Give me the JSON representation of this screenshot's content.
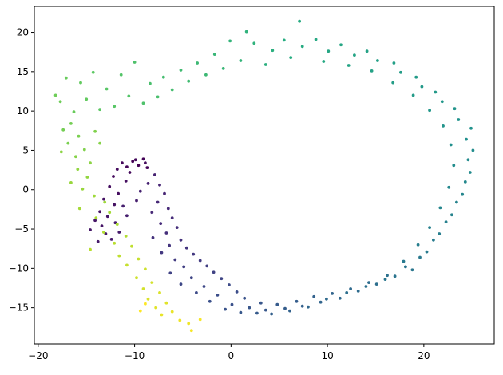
{
  "chart_data": {
    "type": "scatter",
    "title": "",
    "xlabel": "",
    "ylabel": "",
    "xlim": [
      -20.4,
      27.3
    ],
    "ylim": [
      -19.6,
      23.3
    ],
    "xticks": [
      -20,
      -10,
      0,
      10,
      20
    ],
    "yticks": [
      -15,
      -10,
      -5,
      0,
      5,
      10,
      15,
      20
    ],
    "grid": false,
    "colormap": "viridis",
    "marker_color_range": {
      "start": "#440154",
      "end": "#fde725"
    },
    "note_on_points": "Points trace a spiral/ring; t in [0,1] maps to viridis color along the curve.",
    "points": [
      {
        "x": -10.2,
        "y": 3.6,
        "t": 0.0
      },
      {
        "x": -9.6,
        "y": 3.1,
        "t": 0.0
      },
      {
        "x": -10.8,
        "y": 2.9,
        "t": 0.01
      },
      {
        "x": -9.1,
        "y": 3.9,
        "t": 0.01
      },
      {
        "x": -8.7,
        "y": 2.8,
        "t": 0.01
      },
      {
        "x": -11.3,
        "y": 3.4,
        "t": 0.02
      },
      {
        "x": -10.5,
        "y": 2.2,
        "t": 0.02
      },
      {
        "x": -9.9,
        "y": 3.8,
        "t": 0.02
      },
      {
        "x": -8.9,
        "y": 3.4,
        "t": 0.03
      },
      {
        "x": -11.8,
        "y": 2.6,
        "t": 0.03
      },
      {
        "x": -12.2,
        "y": 1.7,
        "t": 0.03
      },
      {
        "x": -10.9,
        "y": 1.1,
        "t": 0.04
      },
      {
        "x": -12.6,
        "y": 0.4,
        "t": 0.04
      },
      {
        "x": -11.7,
        "y": -0.5,
        "t": 0.04
      },
      {
        "x": -13.2,
        "y": -1.2,
        "t": 0.05
      },
      {
        "x": -12.1,
        "y": -1.9,
        "t": 0.05
      },
      {
        "x": -13.6,
        "y": -2.8,
        "t": 0.05
      },
      {
        "x": -12.8,
        "y": -3.4,
        "t": 0.06
      },
      {
        "x": -14.1,
        "y": -3.9,
        "t": 0.06
      },
      {
        "x": -13.4,
        "y": -4.6,
        "t": 0.06
      },
      {
        "x": -14.6,
        "y": -5.1,
        "t": 0.07
      },
      {
        "x": -13.0,
        "y": -5.6,
        "t": 0.07
      },
      {
        "x": -12.4,
        "y": -6.3,
        "t": 0.07
      },
      {
        "x": -13.8,
        "y": -6.6,
        "t": 0.08
      },
      {
        "x": -11.6,
        "y": -5.4,
        "t": 0.08
      },
      {
        "x": -12.0,
        "y": -4.2,
        "t": 0.08
      },
      {
        "x": -10.8,
        "y": -3.3,
        "t": 0.09
      },
      {
        "x": -11.2,
        "y": -2.1,
        "t": 0.09
      },
      {
        "x": -9.8,
        "y": -1.4,
        "t": 0.09
      },
      {
        "x": -9.4,
        "y": -0.2,
        "t": 0.1
      },
      {
        "x": -8.6,
        "y": 0.8,
        "t": 0.1
      },
      {
        "x": -7.9,
        "y": 1.9,
        "t": 0.1
      },
      {
        "x": -7.4,
        "y": 0.6,
        "t": 0.11
      },
      {
        "x": -6.9,
        "y": -0.5,
        "t": 0.11
      },
      {
        "x": -7.6,
        "y": -1.6,
        "t": 0.12
      },
      {
        "x": -6.5,
        "y": -2.4,
        "t": 0.12
      },
      {
        "x": -8.2,
        "y": -2.9,
        "t": 0.12
      },
      {
        "x": -6.1,
        "y": -3.6,
        "t": 0.13
      },
      {
        "x": -7.3,
        "y": -4.3,
        "t": 0.13
      },
      {
        "x": -5.6,
        "y": -4.8,
        "t": 0.14
      },
      {
        "x": -6.7,
        "y": -5.5,
        "t": 0.14
      },
      {
        "x": -8.1,
        "y": -6.1,
        "t": 0.15
      },
      {
        "x": -5.2,
        "y": -6.4,
        "t": 0.15
      },
      {
        "x": -6.4,
        "y": -7.1,
        "t": 0.16
      },
      {
        "x": -4.6,
        "y": -7.4,
        "t": 0.16
      },
      {
        "x": -7.2,
        "y": -8.0,
        "t": 0.17
      },
      {
        "x": -3.9,
        "y": -8.2,
        "t": 0.17
      },
      {
        "x": -5.8,
        "y": -8.9,
        "t": 0.18
      },
      {
        "x": -3.2,
        "y": -9.0,
        "t": 0.18
      },
      {
        "x": -4.9,
        "y": -9.8,
        "t": 0.19
      },
      {
        "x": -2.5,
        "y": -9.7,
        "t": 0.19
      },
      {
        "x": -6.3,
        "y": -10.6,
        "t": 0.2
      },
      {
        "x": -1.8,
        "y": -10.5,
        "t": 0.2
      },
      {
        "x": -4.1,
        "y": -11.2,
        "t": 0.21
      },
      {
        "x": -1.0,
        "y": -11.3,
        "t": 0.21
      },
      {
        "x": -5.2,
        "y": -12.0,
        "t": 0.22
      },
      {
        "x": -2.8,
        "y": -12.3,
        "t": 0.22
      },
      {
        "x": -0.2,
        "y": -12.1,
        "t": 0.23
      },
      {
        "x": -3.6,
        "y": -13.1,
        "t": 0.23
      },
      {
        "x": -1.4,
        "y": -13.4,
        "t": 0.24
      },
      {
        "x": 0.6,
        "y": -13.0,
        "t": 0.24
      },
      {
        "x": -2.2,
        "y": -14.2,
        "t": 0.25
      },
      {
        "x": 0.1,
        "y": -14.6,
        "t": 0.25
      },
      {
        "x": 1.4,
        "y": -13.8,
        "t": 0.26
      },
      {
        "x": -0.6,
        "y": -15.2,
        "t": 0.26
      },
      {
        "x": 1.9,
        "y": -15.0,
        "t": 0.27
      },
      {
        "x": 3.1,
        "y": -14.4,
        "t": 0.27
      },
      {
        "x": 1.0,
        "y": -15.6,
        "t": 0.28
      },
      {
        "x": 3.6,
        "y": -15.3,
        "t": 0.28
      },
      {
        "x": 4.8,
        "y": -14.6,
        "t": 0.29
      },
      {
        "x": 2.7,
        "y": -15.7,
        "t": 0.29
      },
      {
        "x": 5.6,
        "y": -15.1,
        "t": 0.3
      },
      {
        "x": 6.8,
        "y": -14.2,
        "t": 0.3
      },
      {
        "x": 4.2,
        "y": -15.8,
        "t": 0.31
      },
      {
        "x": 7.4,
        "y": -14.8,
        "t": 0.31
      },
      {
        "x": 8.6,
        "y": -13.6,
        "t": 0.32
      },
      {
        "x": 6.1,
        "y": -15.4,
        "t": 0.32
      },
      {
        "x": 9.3,
        "y": -14.3,
        "t": 0.33
      },
      {
        "x": 10.5,
        "y": -13.2,
        "t": 0.33
      },
      {
        "x": 8.0,
        "y": -14.9,
        "t": 0.34
      },
      {
        "x": 11.3,
        "y": -13.8,
        "t": 0.34
      },
      {
        "x": 12.4,
        "y": -12.6,
        "t": 0.35
      },
      {
        "x": 9.9,
        "y": -13.9,
        "t": 0.35
      },
      {
        "x": 13.2,
        "y": -12.9,
        "t": 0.36
      },
      {
        "x": 14.3,
        "y": -11.8,
        "t": 0.36
      },
      {
        "x": 12.0,
        "y": -13.1,
        "t": 0.37
      },
      {
        "x": 15.1,
        "y": -12.0,
        "t": 0.37
      },
      {
        "x": 16.2,
        "y": -10.9,
        "t": 0.38
      },
      {
        "x": 14.0,
        "y": -12.3,
        "t": 0.38
      },
      {
        "x": 17.0,
        "y": -11.0,
        "t": 0.39
      },
      {
        "x": 18.1,
        "y": -9.8,
        "t": 0.39
      },
      {
        "x": 16.0,
        "y": -11.4,
        "t": 0.4
      },
      {
        "x": 18.8,
        "y": -10.2,
        "t": 0.4
      },
      {
        "x": 19.6,
        "y": -8.6,
        "t": 0.41
      },
      {
        "x": 17.9,
        "y": -9.1,
        "t": 0.41
      },
      {
        "x": 20.3,
        "y": -7.9,
        "t": 0.42
      },
      {
        "x": 21.0,
        "y": -6.4,
        "t": 0.42
      },
      {
        "x": 19.4,
        "y": -7.0,
        "t": 0.43
      },
      {
        "x": 21.6,
        "y": -5.6,
        "t": 0.43
      },
      {
        "x": 22.3,
        "y": -4.1,
        "t": 0.44
      },
      {
        "x": 20.6,
        "y": -4.8,
        "t": 0.44
      },
      {
        "x": 22.9,
        "y": -3.2,
        "t": 0.45
      },
      {
        "x": 23.4,
        "y": -1.6,
        "t": 0.45
      },
      {
        "x": 21.7,
        "y": -2.3,
        "t": 0.46
      },
      {
        "x": 24.0,
        "y": -0.6,
        "t": 0.46
      },
      {
        "x": 24.3,
        "y": 1.0,
        "t": 0.47
      },
      {
        "x": 22.6,
        "y": 0.3,
        "t": 0.47
      },
      {
        "x": 24.8,
        "y": 2.2,
        "t": 0.48
      },
      {
        "x": 24.6,
        "y": 3.8,
        "t": 0.48
      },
      {
        "x": 23.1,
        "y": 3.1,
        "t": 0.49
      },
      {
        "x": 25.1,
        "y": 5.0,
        "t": 0.49
      },
      {
        "x": 24.4,
        "y": 6.4,
        "t": 0.5
      },
      {
        "x": 22.8,
        "y": 5.7,
        "t": 0.5
      },
      {
        "x": 24.9,
        "y": 7.8,
        "t": 0.51
      },
      {
        "x": 23.6,
        "y": 8.9,
        "t": 0.51
      },
      {
        "x": 22.0,
        "y": 8.1,
        "t": 0.52
      },
      {
        "x": 23.2,
        "y": 10.3,
        "t": 0.52
      },
      {
        "x": 21.9,
        "y": 11.2,
        "t": 0.53
      },
      {
        "x": 20.6,
        "y": 10.1,
        "t": 0.53
      },
      {
        "x": 21.2,
        "y": 12.4,
        "t": 0.54
      },
      {
        "x": 19.8,
        "y": 13.1,
        "t": 0.54
      },
      {
        "x": 18.9,
        "y": 12.0,
        "t": 0.55
      },
      {
        "x": 19.2,
        "y": 14.3,
        "t": 0.55
      },
      {
        "x": 17.6,
        "y": 14.9,
        "t": 0.56
      },
      {
        "x": 16.8,
        "y": 13.6,
        "t": 0.56
      },
      {
        "x": 16.9,
        "y": 16.1,
        "t": 0.57
      },
      {
        "x": 15.2,
        "y": 16.4,
        "t": 0.57
      },
      {
        "x": 14.6,
        "y": 15.1,
        "t": 0.58
      },
      {
        "x": 14.1,
        "y": 17.6,
        "t": 0.58
      },
      {
        "x": 12.8,
        "y": 17.1,
        "t": 0.59
      },
      {
        "x": 12.2,
        "y": 15.8,
        "t": 0.59
      },
      {
        "x": 11.4,
        "y": 18.4,
        "t": 0.6
      },
      {
        "x": 10.1,
        "y": 17.6,
        "t": 0.6
      },
      {
        "x": 9.6,
        "y": 16.3,
        "t": 0.61
      },
      {
        "x": 8.8,
        "y": 19.1,
        "t": 0.61
      },
      {
        "x": 7.4,
        "y": 18.2,
        "t": 0.62
      },
      {
        "x": 7.1,
        "y": 21.4,
        "t": 0.62
      },
      {
        "x": 6.2,
        "y": 16.8,
        "t": 0.63
      },
      {
        "x": 5.5,
        "y": 19.0,
        "t": 0.63
      },
      {
        "x": 4.3,
        "y": 17.7,
        "t": 0.64
      },
      {
        "x": 3.6,
        "y": 15.9,
        "t": 0.64
      },
      {
        "x": 2.4,
        "y": 18.6,
        "t": 0.65
      },
      {
        "x": 1.6,
        "y": 20.1,
        "t": 0.65
      },
      {
        "x": 1.0,
        "y": 16.4,
        "t": 0.66
      },
      {
        "x": -0.1,
        "y": 18.9,
        "t": 0.66
      },
      {
        "x": -0.8,
        "y": 15.4,
        "t": 0.67
      },
      {
        "x": -1.7,
        "y": 17.2,
        "t": 0.67
      },
      {
        "x": -2.6,
        "y": 14.6,
        "t": 0.68
      },
      {
        "x": -3.5,
        "y": 16.1,
        "t": 0.68
      },
      {
        "x": -4.4,
        "y": 13.8,
        "t": 0.69
      },
      {
        "x": -5.2,
        "y": 15.2,
        "t": 0.69
      },
      {
        "x": -6.1,
        "y": 12.7,
        "t": 0.7
      },
      {
        "x": -7.0,
        "y": 14.3,
        "t": 0.7
      },
      {
        "x": -7.6,
        "y": 11.8,
        "t": 0.71
      },
      {
        "x": -8.4,
        "y": 13.5,
        "t": 0.71
      },
      {
        "x": -9.1,
        "y": 11.0,
        "t": 0.72
      },
      {
        "x": -10.0,
        "y": 16.2,
        "t": 0.72
      },
      {
        "x": -10.6,
        "y": 11.9,
        "t": 0.73
      },
      {
        "x": -11.4,
        "y": 14.6,
        "t": 0.73
      },
      {
        "x": -12.1,
        "y": 10.6,
        "t": 0.74
      },
      {
        "x": -12.9,
        "y": 12.8,
        "t": 0.74
      },
      {
        "x": -13.6,
        "y": 10.2,
        "t": 0.75
      },
      {
        "x": -14.3,
        "y": 14.9,
        "t": 0.75
      },
      {
        "x": -15.0,
        "y": 11.5,
        "t": 0.76
      },
      {
        "x": -15.6,
        "y": 13.6,
        "t": 0.76
      },
      {
        "x": -16.3,
        "y": 9.9,
        "t": 0.77
      },
      {
        "x": -17.1,
        "y": 14.2,
        "t": 0.77
      },
      {
        "x": -17.7,
        "y": 11.2,
        "t": 0.78
      },
      {
        "x": -18.2,
        "y": 12.0,
        "t": 0.78
      },
      {
        "x": -16.6,
        "y": 8.4,
        "t": 0.79
      },
      {
        "x": -17.4,
        "y": 7.6,
        "t": 0.79
      },
      {
        "x": -15.8,
        "y": 6.8,
        "t": 0.8
      },
      {
        "x": -16.9,
        "y": 5.9,
        "t": 0.8
      },
      {
        "x": -15.2,
        "y": 5.1,
        "t": 0.81
      },
      {
        "x": -14.1,
        "y": 7.4,
        "t": 0.81
      },
      {
        "x": -13.6,
        "y": 5.9,
        "t": 0.82
      },
      {
        "x": -16.1,
        "y": 4.2,
        "t": 0.82
      },
      {
        "x": -14.6,
        "y": 3.4,
        "t": 0.83
      },
      {
        "x": -17.6,
        "y": 4.8,
        "t": 0.83
      },
      {
        "x": -15.9,
        "y": 2.6,
        "t": 0.84
      },
      {
        "x": -14.9,
        "y": 1.6,
        "t": 0.84
      },
      {
        "x": -16.6,
        "y": 0.9,
        "t": 0.85
      },
      {
        "x": -15.4,
        "y": 0.1,
        "t": 0.85
      },
      {
        "x": -14.2,
        "y": -0.8,
        "t": 0.86
      },
      {
        "x": -13.1,
        "y": -1.6,
        "t": 0.86
      },
      {
        "x": -15.7,
        "y": -2.4,
        "t": 0.87
      },
      {
        "x": -12.6,
        "y": -2.9,
        "t": 0.87
      },
      {
        "x": -14.0,
        "y": -3.6,
        "t": 0.88
      },
      {
        "x": -11.8,
        "y": -4.4,
        "t": 0.88
      },
      {
        "x": -13.2,
        "y": -5.4,
        "t": 0.89
      },
      {
        "x": -10.9,
        "y": -5.9,
        "t": 0.89
      },
      {
        "x": -12.1,
        "y": -6.8,
        "t": 0.9
      },
      {
        "x": -14.6,
        "y": -7.6,
        "t": 0.9
      },
      {
        "x": -10.3,
        "y": -7.2,
        "t": 0.91
      },
      {
        "x": -11.6,
        "y": -8.4,
        "t": 0.91
      },
      {
        "x": -9.6,
        "y": -8.8,
        "t": 0.92
      },
      {
        "x": -10.8,
        "y": -9.6,
        "t": 0.92
      },
      {
        "x": -8.9,
        "y": -10.1,
        "t": 0.93
      },
      {
        "x": -9.8,
        "y": -11.2,
        "t": 0.93
      },
      {
        "x": -8.2,
        "y": -11.8,
        "t": 0.94
      },
      {
        "x": -9.1,
        "y": -12.6,
        "t": 0.94
      },
      {
        "x": -7.4,
        "y": -13.1,
        "t": 0.95
      },
      {
        "x": -8.6,
        "y": -13.9,
        "t": 0.95
      },
      {
        "x": -6.7,
        "y": -14.4,
        "t": 0.96
      },
      {
        "x": -7.8,
        "y": -15.0,
        "t": 0.96
      },
      {
        "x": -6.1,
        "y": -15.5,
        "t": 0.97
      },
      {
        "x": -7.2,
        "y": -15.9,
        "t": 0.97
      },
      {
        "x": -5.3,
        "y": -16.6,
        "t": 0.98
      },
      {
        "x": -4.4,
        "y": -17.0,
        "t": 0.98
      },
      {
        "x": -4.1,
        "y": -17.9,
        "t": 0.99
      },
      {
        "x": -3.2,
        "y": -16.5,
        "t": 0.99
      },
      {
        "x": -8.9,
        "y": -14.5,
        "t": 1.0
      },
      {
        "x": -9.4,
        "y": -15.4,
        "t": 1.0
      }
    ]
  }
}
